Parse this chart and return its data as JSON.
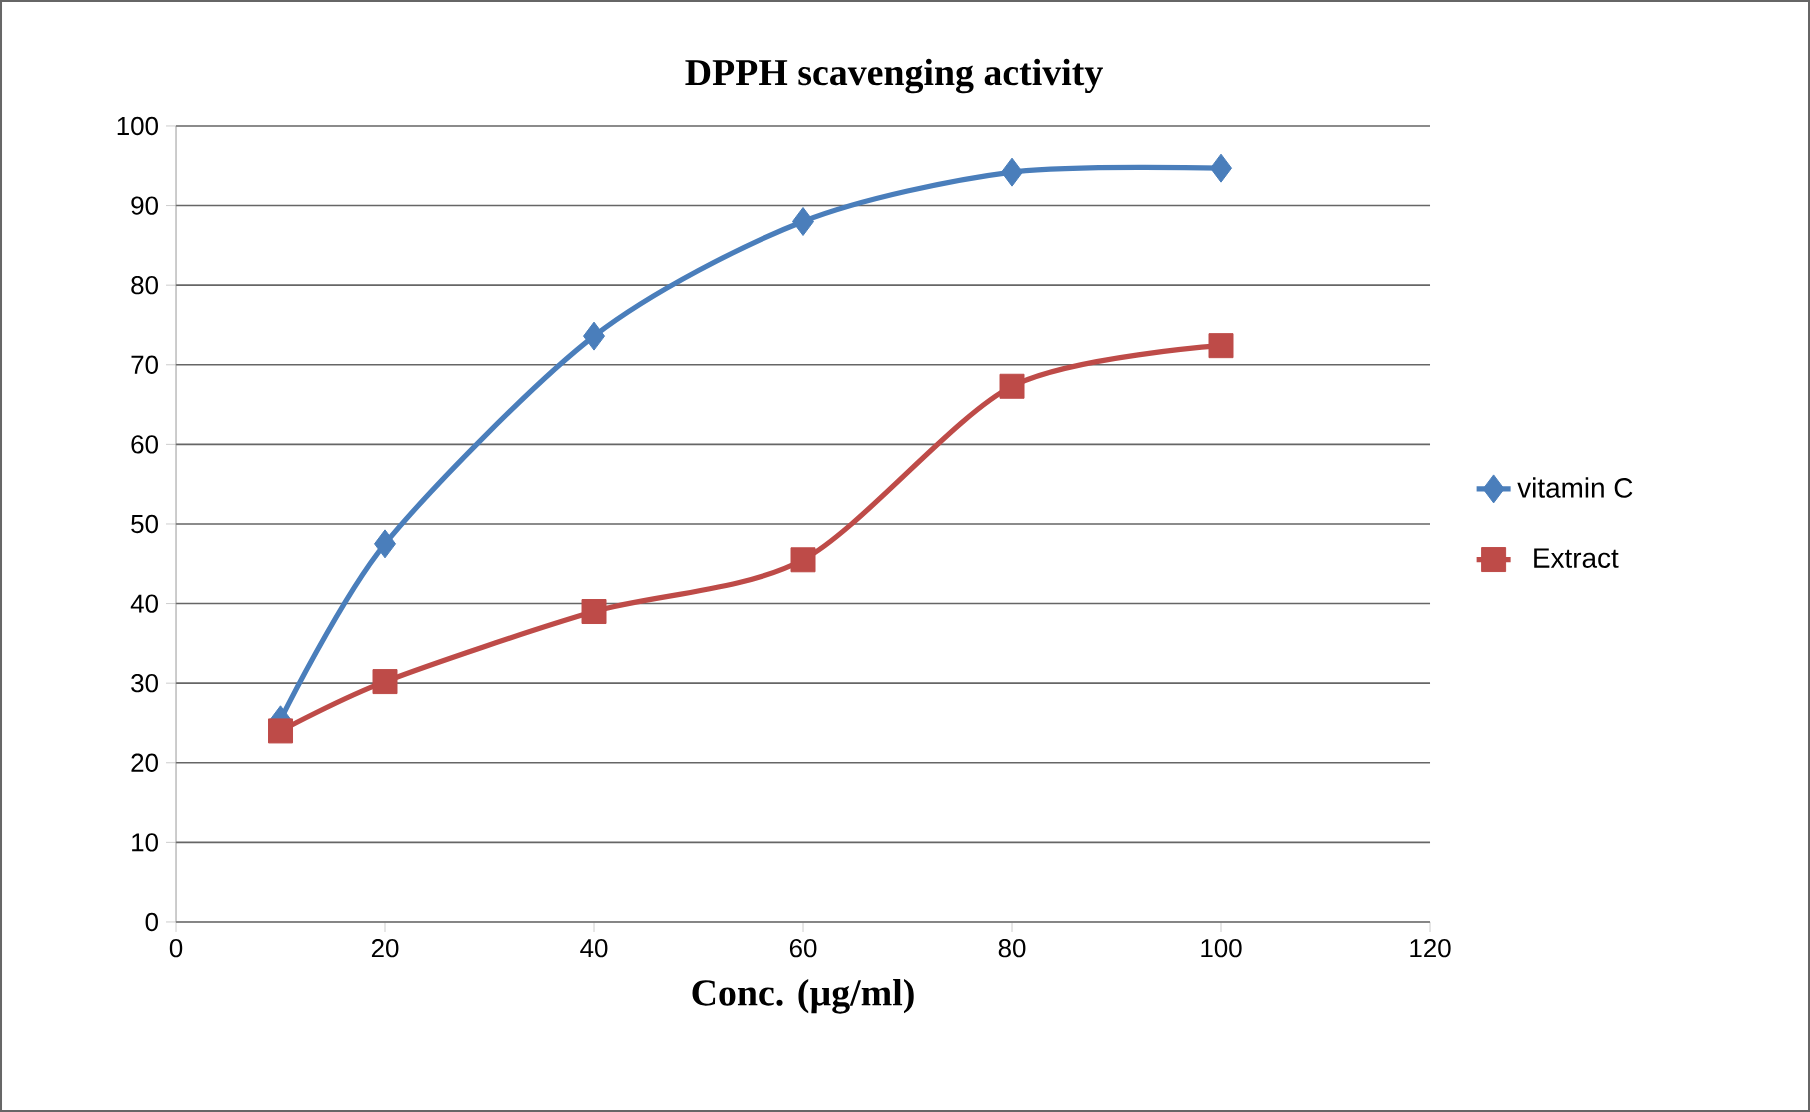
{
  "chart_data": {
    "type": "line",
    "title": "DPPH scavenging activity",
    "xlabel": "Conc. (µg/ml)",
    "x": [
      10,
      20,
      40,
      60,
      80,
      100
    ],
    "series": [
      {
        "name": "vitamin C",
        "color": "#4a7ebb",
        "marker": "diamond",
        "values": [
          25.4,
          47.5,
          73.6,
          88,
          94.2,
          94.7
        ]
      },
      {
        "name": "Extract",
        "color": "#be4b48",
        "marker": "square",
        "values": [
          24,
          30.2,
          39,
          45.5,
          67.3,
          72.4
        ]
      }
    ],
    "xlim": [
      0,
      120
    ],
    "xticks": [
      0,
      20,
      40,
      60,
      80,
      100,
      120
    ],
    "ylim": [
      0,
      100
    ],
    "yticks": [
      0,
      10,
      20,
      30,
      40,
      50,
      60,
      70,
      80,
      90,
      100
    ],
    "grid": "y",
    "legend": "right",
    "line_style": "solid"
  }
}
